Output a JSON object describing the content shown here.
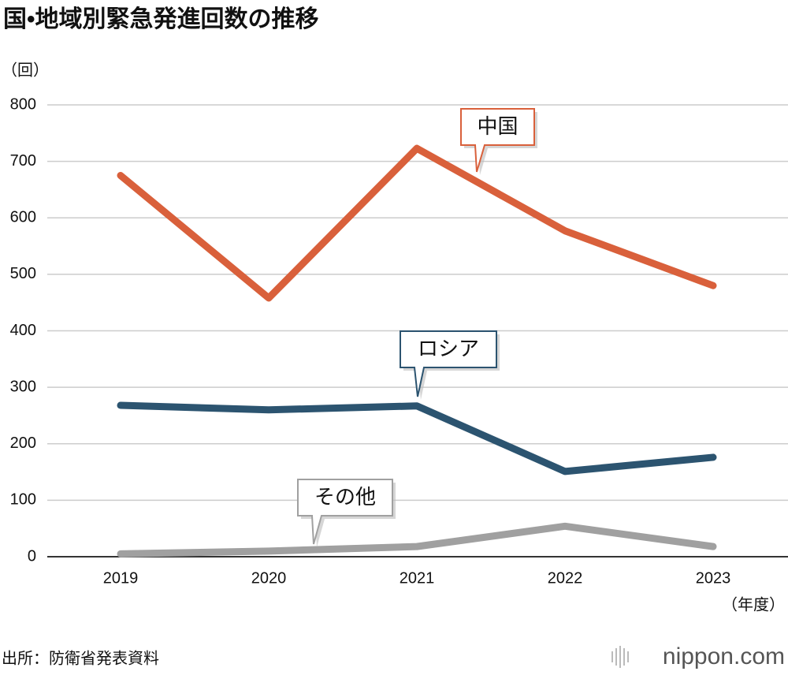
{
  "chart_data": {
    "type": "line",
    "title": "国•地域別緊急発進回数の推移",
    "y_unit": "（回）",
    "x_unit": "（年度）",
    "categories": [
      "2019",
      "2020",
      "2021",
      "2022",
      "2023"
    ],
    "series": [
      {
        "name": "中国",
        "color": "#d9603b",
        "values": [
          675,
          458,
          723,
          577,
          480
        ]
      },
      {
        "name": "ロシア",
        "color": "#2c5470",
        "values": [
          268,
          260,
          267,
          151,
          176
        ]
      },
      {
        "name": "その他",
        "color": "#a0a0a0",
        "values": [
          5,
          10,
          18,
          54,
          18
        ]
      }
    ],
    "ylim": [
      0,
      800
    ],
    "yticks": [
      0,
      100,
      200,
      300,
      400,
      500,
      600,
      700,
      800
    ],
    "grid": true,
    "source": "出所：防衛省発表資料",
    "logo": "nippon.com"
  }
}
